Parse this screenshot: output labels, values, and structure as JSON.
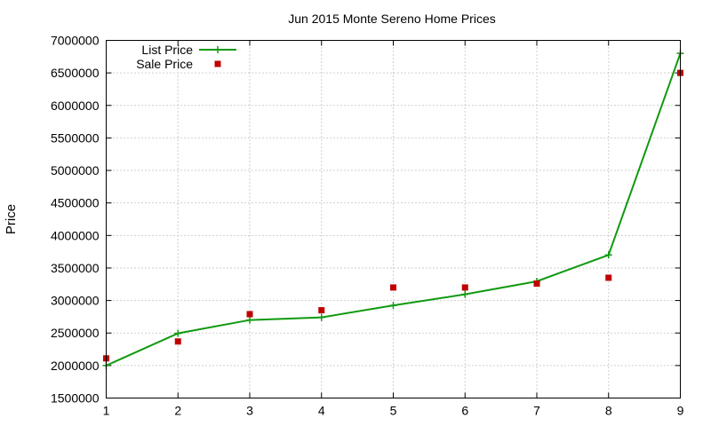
{
  "chart_data": {
    "type": "line",
    "title": "Jun 2015 Monte Sereno Home Prices",
    "xlabel": "",
    "ylabel": "Price",
    "x": [
      1,
      2,
      3,
      4,
      5,
      6,
      7,
      8,
      9
    ],
    "xlim": [
      1,
      9
    ],
    "ylim": [
      1500000,
      7000000
    ],
    "xticks": [
      "1",
      "2",
      "3",
      "4",
      "5",
      "6",
      "7",
      "8",
      "9"
    ],
    "yticks": [
      "1500000",
      "2000000",
      "2500000",
      "3000000",
      "3500000",
      "4000000",
      "4500000",
      "5000000",
      "5500000",
      "6000000",
      "6500000",
      "7000000"
    ],
    "grid": true,
    "legend_position": "top-left",
    "series": [
      {
        "name": "List Price",
        "style": "line-with-plus-markers",
        "color": "#109910",
        "values": [
          2000000,
          2495000,
          2700000,
          2740000,
          2925000,
          3095000,
          3295000,
          3700000,
          6800000
        ]
      },
      {
        "name": "Sale Price",
        "style": "square-points",
        "color": "#c00000",
        "values": [
          2110000,
          2370000,
          2790000,
          2850000,
          3200000,
          3200000,
          3260000,
          3350000,
          6500000
        ]
      }
    ]
  }
}
